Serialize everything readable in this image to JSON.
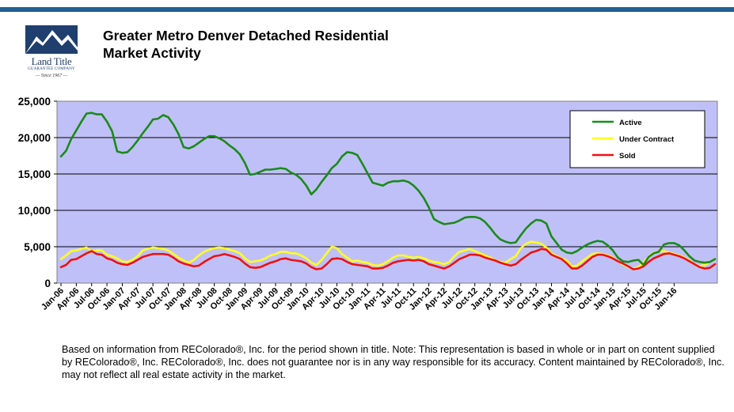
{
  "header": {
    "title_line1": "Greater Metro Denver Detached Residential",
    "title_line2": "Market Activity"
  },
  "logo": {
    "name": "Land Title",
    "tagline": "GUARANTEE COMPANY",
    "since": "— Since 1967 —",
    "icon": "mountain-logo-icon"
  },
  "footnote": "Based on information from REColorado®, Inc. for the period shown in title. Note: This representation is based in whole or in part on content supplied by REColorado®, Inc. REColorado®, Inc. does not guarantee nor is in any way responsible for its accuracy. Content maintained by REColorado®, Inc. may not reflect all real estate activity in the market.",
  "colors": {
    "rule": "#1f5f96",
    "plot_bg": "#c0c0f8",
    "active": "#1a8a1a",
    "under_contract": "#ffff22",
    "sold": "#ee1111"
  },
  "chart_data": {
    "type": "line",
    "title": "",
    "xlabel": "",
    "ylabel": "",
    "ylim": [
      0,
      25000
    ],
    "yticks": [
      "0",
      "5,000",
      "10,000",
      "15,000",
      "20,000",
      "25,000"
    ],
    "x_start": "Jan-06",
    "x_tick_labels": [
      "Jan-06",
      "Apr-06",
      "Jul-06",
      "Oct-06",
      "Jan-07",
      "Apr-07",
      "Jul-07",
      "Oct-07",
      "Jan-08",
      "Apr-08",
      "Jul-08",
      "Oct-08",
      "Jan-09",
      "Apr-09",
      "Jul-09",
      "Oct-09",
      "Jan-10",
      "Apr-10",
      "Jul-10",
      "Oct-10",
      "Jan-11",
      "Apr-11",
      "Jul-11",
      "Oct-11",
      "Jan-12",
      "Apr-12",
      "Jul-12",
      "Oct-12",
      "Jan-13",
      "Apr-13",
      "Jul-13",
      "Oct-13",
      "Jan-14",
      "Apr-14",
      "Jul-14",
      "Oct-14",
      "Jan-15",
      "Apr-15",
      "Jul-15",
      "Oct-15",
      "Jan-16"
    ],
    "grid": "horizontal",
    "legend_position": "top-right",
    "series": [
      {
        "name": "Active",
        "values": [
          17400,
          18200,
          19800,
          21000,
          22200,
          23300,
          23400,
          23200,
          23200,
          22200,
          20900,
          18100,
          17900,
          18000,
          18700,
          19600,
          20600,
          21500,
          22500,
          22600,
          23100,
          22800,
          21800,
          20500,
          18700,
          18500,
          18800,
          19300,
          19800,
          20200,
          20200,
          19900,
          19500,
          18900,
          18400,
          17700,
          16500,
          14900,
          15000,
          15300,
          15600,
          15600,
          15700,
          15800,
          15700,
          15200,
          14900,
          14300,
          13400,
          12200,
          12900,
          13900,
          14800,
          15800,
          16400,
          17400,
          18000,
          17900,
          17600,
          16400,
          15100,
          13800,
          13600,
          13400,
          13800,
          14000,
          14000,
          14100,
          13900,
          13400,
          12700,
          11700,
          10400,
          8800,
          8400,
          8100,
          8200,
          8300,
          8600,
          9000,
          9100,
          9100,
          8900,
          8400,
          7600,
          6700,
          6000,
          5700,
          5500,
          5600,
          6600,
          7500,
          8200,
          8700,
          8600,
          8200,
          6400,
          5500,
          4600,
          4200,
          4100,
          4400,
          4900,
          5300,
          5600,
          5800,
          5700,
          5200,
          4500,
          3500,
          3000,
          2900,
          3100,
          3200,
          2500,
          3600,
          4100,
          4300,
          5300,
          5500,
          5500,
          5200,
          4500,
          3700,
          3100,
          2900,
          2800,
          2900,
          3300
        ]
      },
      {
        "name": "Under Contract",
        "values": [
          3300,
          3800,
          4400,
          4500,
          4700,
          4900,
          4400,
          4500,
          4500,
          3900,
          3700,
          3400,
          3000,
          2900,
          3200,
          3700,
          4500,
          4700,
          4900,
          4800,
          4700,
          4500,
          4000,
          3500,
          3100,
          2800,
          3200,
          3800,
          4300,
          4600,
          4800,
          4900,
          4800,
          4600,
          4400,
          4100,
          3400,
          2900,
          3000,
          3100,
          3400,
          3800,
          4000,
          4300,
          4300,
          4100,
          4100,
          3800,
          3400,
          2800,
          2500,
          3200,
          4100,
          5000,
          4800,
          4000,
          3500,
          3000,
          3100,
          2900,
          2800,
          2500,
          2400,
          2600,
          3000,
          3500,
          3800,
          3800,
          3600,
          3500,
          3600,
          3400,
          3100,
          2900,
          2800,
          2600,
          2900,
          3700,
          4300,
          4500,
          4700,
          4400,
          4100,
          3800,
          3500,
          3100,
          2900,
          2800,
          3300,
          3700,
          4800,
          5400,
          5700,
          5600,
          5400,
          4900,
          4100,
          3700,
          3400,
          3100,
          2300,
          2400,
          3000,
          3500,
          4000,
          4100,
          4000,
          3800,
          3500,
          3000,
          2600,
          2200,
          2000,
          2200,
          2800,
          3700,
          4200,
          4300,
          4400,
          4200,
          4000,
          3800,
          3500,
          3100,
          2600,
          2300,
          2500,
          2900,
          3300
        ]
      },
      {
        "name": "Sold",
        "values": [
          2200,
          2500,
          3200,
          3300,
          3700,
          4100,
          4400,
          4000,
          3900,
          3400,
          3200,
          2800,
          2600,
          2500,
          2800,
          3200,
          3600,
          3800,
          4000,
          4000,
          4000,
          3900,
          3500,
          3000,
          2700,
          2500,
          2300,
          2400,
          2900,
          3300,
          3700,
          3800,
          4000,
          3800,
          3600,
          3300,
          2700,
          2200,
          2100,
          2200,
          2500,
          2800,
          3000,
          3300,
          3400,
          3200,
          3100,
          3000,
          2700,
          2200,
          1900,
          2000,
          2600,
          3300,
          3400,
          3300,
          2900,
          2600,
          2500,
          2400,
          2300,
          2000,
          2000,
          2100,
          2400,
          2800,
          3000,
          3100,
          3200,
          3100,
          3200,
          3000,
          2600,
          2400,
          2200,
          2000,
          2300,
          2800,
          3300,
          3600,
          3900,
          3900,
          3800,
          3500,
          3300,
          3100,
          2800,
          2600,
          2400,
          2600,
          3200,
          3700,
          4200,
          4400,
          4700,
          4600,
          3900,
          3600,
          3300,
          2700,
          2000,
          2000,
          2400,
          3000,
          3600,
          3900,
          3900,
          3700,
          3400,
          3000,
          2700,
          2300,
          1900,
          2000,
          2300,
          2900,
          3400,
          3700,
          4000,
          4100,
          3900,
          3700,
          3400,
          3000,
          2600,
          2200,
          2000,
          2100,
          2600
        ]
      }
    ]
  }
}
